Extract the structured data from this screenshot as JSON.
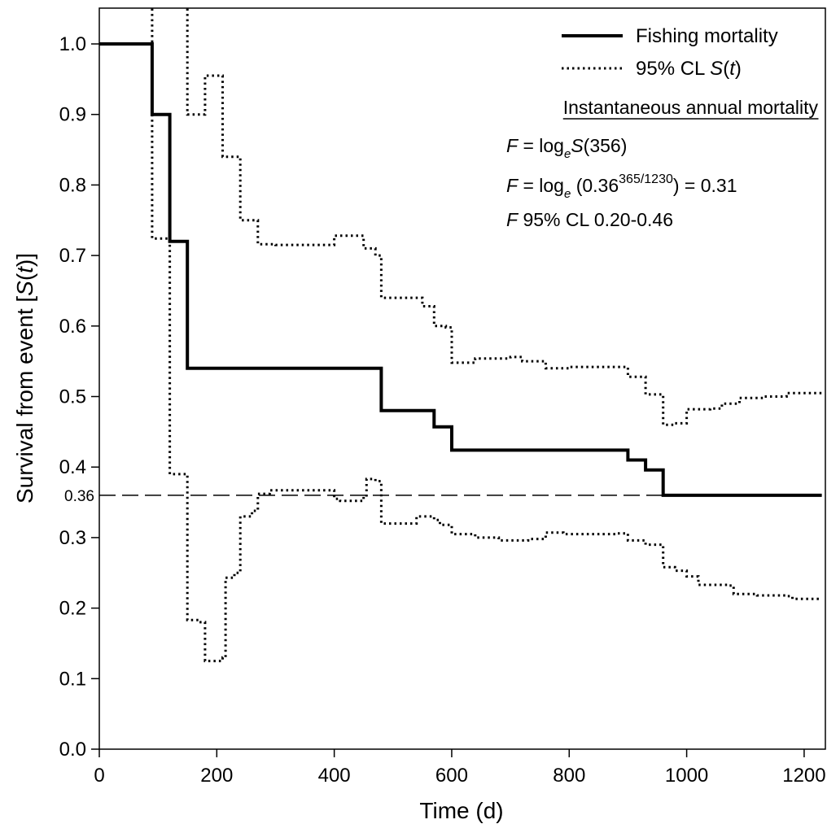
{
  "chart_data": {
    "type": "line",
    "title": "",
    "xlabel": "Time (d)",
    "ylabel_parts": [
      "Survival from event [",
      "S",
      "(",
      "t",
      ")]"
    ],
    "xlim": [
      0,
      1230
    ],
    "ylim": [
      0.0,
      1.05
    ],
    "x_ticks": [
      0,
      200,
      400,
      600,
      800,
      1000,
      1200
    ],
    "y_ticks": [
      0.0,
      0.1,
      0.2,
      0.3,
      0.4,
      0.5,
      0.6,
      0.7,
      0.8,
      0.9,
      1.0
    ],
    "x_tick_labels": [
      "0",
      "200",
      "400",
      "600",
      "800",
      "1000",
      "1200"
    ],
    "y_tick_labels": [
      "0.0",
      "0.1",
      "0.2",
      "0.3",
      "0.4",
      "0.5",
      "0.6",
      "0.7",
      "0.8",
      "0.9",
      "1.0"
    ],
    "grid": false,
    "legend_position": "top-right",
    "series": [
      {
        "name": "Fishing mortality",
        "style": "solid",
        "step": true,
        "points": [
          [
            0,
            1.0
          ],
          [
            90,
            0.9
          ],
          [
            120,
            0.72
          ],
          [
            150,
            0.54
          ],
          [
            480,
            0.48
          ],
          [
            570,
            0.457
          ],
          [
            600,
            0.424
          ],
          [
            900,
            0.41
          ],
          [
            930,
            0.396
          ],
          [
            960,
            0.36
          ],
          [
            1230,
            0.36
          ]
        ]
      },
      {
        "name": "95% CL S(t)",
        "style": "dotted",
        "step": true,
        "points": [
          [
            90,
            1.05
          ],
          [
            90,
            0.724
          ],
          [
            120,
            0.72
          ],
          [
            120,
            0.39
          ],
          [
            150,
            0.385
          ],
          [
            150,
            0.183
          ],
          [
            170,
            0.18
          ],
          [
            180,
            0.125
          ],
          [
            210,
            0.13
          ],
          [
            215,
            0.243
          ],
          [
            230,
            0.25
          ],
          [
            240,
            0.33
          ],
          [
            260,
            0.338
          ],
          [
            270,
            0.362
          ],
          [
            290,
            0.367
          ],
          [
            400,
            0.355
          ],
          [
            410,
            0.352
          ],
          [
            450,
            0.358
          ],
          [
            455,
            0.383
          ],
          [
            470,
            0.38
          ],
          [
            480,
            0.32
          ],
          [
            520,
            0.32
          ],
          [
            540,
            0.33
          ],
          [
            570,
            0.325
          ],
          [
            580,
            0.318
          ],
          [
            600,
            0.305
          ],
          [
            640,
            0.3
          ],
          [
            680,
            0.296
          ],
          [
            730,
            0.298
          ],
          [
            760,
            0.307
          ],
          [
            790,
            0.305
          ],
          [
            880,
            0.306
          ],
          [
            900,
            0.296
          ],
          [
            930,
            0.29
          ],
          [
            960,
            0.258
          ],
          [
            980,
            0.253
          ],
          [
            1000,
            0.245
          ],
          [
            1020,
            0.233
          ],
          [
            1070,
            0.232
          ],
          [
            1080,
            0.22
          ],
          [
            1100,
            0.22
          ],
          [
            1120,
            0.218
          ],
          [
            1170,
            0.217
          ],
          [
            1180,
            0.213
          ],
          [
            1230,
            0.213
          ]
        ]
      },
      {
        "name": "95% CL S(t)",
        "style": "dotted",
        "step": true,
        "points": [
          [
            150,
            1.05
          ],
          [
            150,
            0.9
          ],
          [
            180,
            0.9
          ],
          [
            180,
            0.955
          ],
          [
            210,
            0.955
          ],
          [
            210,
            0.84
          ],
          [
            240,
            0.833
          ],
          [
            240,
            0.75
          ],
          [
            270,
            0.745
          ],
          [
            270,
            0.716
          ],
          [
            300,
            0.715
          ],
          [
            380,
            0.715
          ],
          [
            400,
            0.728
          ],
          [
            430,
            0.728
          ],
          [
            450,
            0.71
          ],
          [
            470,
            0.7
          ],
          [
            480,
            0.64
          ],
          [
            520,
            0.64
          ],
          [
            550,
            0.628
          ],
          [
            570,
            0.6
          ],
          [
            590,
            0.598
          ],
          [
            600,
            0.548
          ],
          [
            620,
            0.548
          ],
          [
            640,
            0.554
          ],
          [
            700,
            0.556
          ],
          [
            720,
            0.55
          ],
          [
            760,
            0.54
          ],
          [
            800,
            0.542
          ],
          [
            880,
            0.542
          ],
          [
            900,
            0.528
          ],
          [
            930,
            0.503
          ],
          [
            960,
            0.46
          ],
          [
            980,
            0.462
          ],
          [
            1000,
            0.482
          ],
          [
            1040,
            0.483
          ],
          [
            1060,
            0.49
          ],
          [
            1090,
            0.498
          ],
          [
            1130,
            0.5
          ],
          [
            1170,
            0.505
          ],
          [
            1230,
            0.503
          ]
        ]
      }
    ],
    "reference_line": {
      "y": 0.36,
      "label": "0.36",
      "style": "dashed"
    },
    "legend": {
      "solid_label": "Fishing mortality",
      "dotted_label_prefix": "95% CL ",
      "dotted_label_s": "S",
      "dotted_label_open": "(",
      "dotted_label_t": "t",
      "dotted_label_close": ")"
    },
    "annotation": {
      "heading": "Instantaneous annual mortality",
      "line1": {
        "F": "F",
        "eq": " = log",
        "sub": "e",
        "S": "S",
        "rest": "(356)"
      },
      "line2": {
        "F": "F",
        "eq": " = log",
        "sub": "e",
        "mid": " (0.36",
        "sup": "365/1230",
        "rest": ") = 0.31"
      },
      "line3": {
        "F": "F",
        "rest": " 95% CL 0.20-0.46"
      }
    }
  }
}
